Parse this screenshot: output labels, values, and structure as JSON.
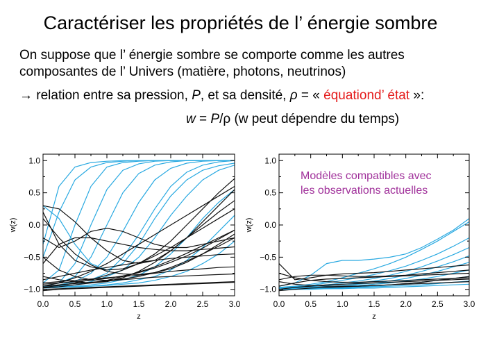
{
  "slide": {
    "title": "Caractériser les propriétés de l’ énergie sombre",
    "para1_line1": "On suppose que l’ énergie sombre se comporte comme les autres",
    "para1_line2": "composantes de l’ Univers (matière, photons, neutrinos)",
    "arrow": "→",
    "para2_pre": " relation entre sa pression, ",
    "para2_P": "P",
    "para2_mid": ", et sa densité, ",
    "para2_rho": "ρ",
    "para2_eqsign": " = « ",
    "para2_eq": "équationd’ état",
    "para2_post": " »:",
    "formula_w": "w",
    "formula_eq": " = ",
    "formula_P": "P",
    "formula_slash": "/ρ",
    "formula_note": "  (w peut dépendre du temps)",
    "right_note_line1": "Modèles compatibles avec",
    "right_note_line2": "les observations actuelles"
  },
  "colors": {
    "cyan": "#29a9e1",
    "black": "#111111",
    "red": "#e41a1a",
    "purple": "#a0309a"
  },
  "chart_data": [
    {
      "type": "line",
      "title": "",
      "xlabel": "z",
      "ylabel": "w(z)",
      "xlim": [
        0,
        3
      ],
      "ylim": [
        -1.1,
        1.1
      ],
      "xticks": [
        "0.0",
        "0.5",
        "1.0",
        "1.5",
        "2.0",
        "2.5",
        "3.0"
      ],
      "yticks": [
        "-1.0",
        "-0.5",
        "0.0",
        "0.5",
        "1.0"
      ],
      "x": [
        0,
        0.25,
        0.5,
        0.75,
        1,
        1.25,
        1.5,
        1.75,
        2,
        2.25,
        2.5,
        2.75,
        3
      ],
      "series_cyan": [
        [
          -0.3,
          0.6,
          0.9,
          0.97,
          0.99,
          1,
          1,
          1,
          1,
          1,
          1,
          1,
          1
        ],
        [
          -0.5,
          0.2,
          0.7,
          0.9,
          0.97,
          0.99,
          1,
          1,
          1,
          1,
          1,
          1,
          1
        ],
        [
          -0.9,
          -0.7,
          0.0,
          0.6,
          0.9,
          0.97,
          0.99,
          1,
          1,
          1,
          1,
          1,
          1
        ],
        [
          -0.95,
          -0.9,
          -0.6,
          0.0,
          0.55,
          0.85,
          0.95,
          0.99,
          1,
          1,
          1,
          1,
          1
        ],
        [
          -0.95,
          -0.9,
          -0.8,
          -0.5,
          0.0,
          0.5,
          0.8,
          0.93,
          0.98,
          1,
          1,
          1,
          1
        ],
        [
          -0.96,
          -0.93,
          -0.88,
          -0.75,
          -0.5,
          -0.1,
          0.35,
          0.7,
          0.88,
          0.96,
          0.99,
          1,
          1
        ],
        [
          -0.97,
          -0.95,
          -0.9,
          -0.85,
          -0.75,
          -0.5,
          -0.15,
          0.25,
          0.6,
          0.82,
          0.93,
          0.98,
          1
        ],
        [
          -0.97,
          -0.95,
          -0.93,
          -0.88,
          -0.8,
          -0.7,
          -0.5,
          -0.2,
          0.15,
          0.45,
          0.7,
          0.85,
          0.93
        ],
        [
          0.3,
          0.1,
          -0.3,
          -0.6,
          -0.7,
          -0.6,
          -0.3,
          0.1,
          0.45,
          0.7,
          0.85,
          0.92,
          0.96
        ],
        [
          -0.97,
          -0.96,
          -0.95,
          -0.93,
          -0.9,
          -0.85,
          -0.78,
          -0.65,
          -0.45,
          -0.2,
          0.1,
          0.35,
          0.55
        ],
        [
          -0.98,
          -0.97,
          -0.96,
          -0.95,
          -0.93,
          -0.9,
          -0.85,
          -0.8,
          -0.7,
          -0.55,
          -0.35,
          -0.1,
          0.15
        ],
        [
          -0.98,
          -0.97,
          -0.96,
          -0.95,
          -0.94,
          -0.92,
          -0.9,
          -0.86,
          -0.8,
          -0.72,
          -0.6,
          -0.45,
          -0.25
        ]
      ],
      "series_black": [
        [
          0.3,
          0.25,
          0.05,
          -0.2,
          -0.4,
          -0.55,
          -0.6,
          -0.55,
          -0.4,
          -0.2,
          0.05,
          0.3,
          0.55
        ],
        [
          0.2,
          -0.3,
          -0.55,
          -0.65,
          -0.7,
          -0.68,
          -0.6,
          -0.45,
          -0.25,
          0.0,
          0.25,
          0.5,
          0.72
        ],
        [
          -0.2,
          -0.35,
          -0.25,
          -0.1,
          -0.05,
          -0.1,
          -0.2,
          -0.3,
          -0.35,
          -0.35,
          -0.3,
          -0.25,
          -0.2
        ],
        [
          -0.6,
          -0.3,
          -0.2,
          -0.2,
          -0.25,
          -0.3,
          -0.35,
          -0.38,
          -0.4,
          -0.4,
          -0.38,
          -0.36,
          -0.34
        ],
        [
          -0.95,
          -0.9,
          -0.82,
          -0.72,
          -0.6,
          -0.45,
          -0.3,
          -0.15,
          0.0,
          0.15,
          0.3,
          0.45,
          0.6
        ],
        [
          -0.97,
          -0.94,
          -0.9,
          -0.85,
          -0.78,
          -0.7,
          -0.6,
          -0.48,
          -0.35,
          -0.2,
          -0.05,
          0.1,
          0.25
        ],
        [
          -0.98,
          -0.96,
          -0.93,
          -0.9,
          -0.86,
          -0.8,
          -0.73,
          -0.65,
          -0.55,
          -0.44,
          -0.32,
          -0.2,
          -0.08
        ],
        [
          -0.85,
          -0.8,
          -0.75,
          -0.7,
          -0.66,
          -0.62,
          -0.58,
          -0.55,
          -0.52,
          -0.5,
          -0.48,
          -0.46,
          -0.45
        ],
        [
          -0.9,
          -0.88,
          -0.86,
          -0.84,
          -0.82,
          -0.8,
          -0.78,
          -0.75,
          -0.72,
          -0.7,
          -0.68,
          -0.66,
          -0.65
        ],
        [
          -0.95,
          -0.93,
          -0.91,
          -0.89,
          -0.87,
          -0.85,
          -0.83,
          -0.81,
          -0.8,
          -0.79,
          -0.78,
          -0.77,
          -0.76
        ],
        [
          -1.0,
          -0.99,
          -0.98,
          -0.97,
          -0.96,
          -0.95,
          -0.94,
          -0.93,
          -0.92,
          -0.91,
          -0.9,
          -0.89,
          -0.88
        ],
        [
          -0.8,
          -0.85,
          -0.88,
          -0.9,
          -0.88,
          -0.82,
          -0.72,
          -0.58,
          -0.4,
          -0.2,
          0.0,
          0.2,
          0.38
        ],
        [
          -0.5,
          -0.7,
          -0.8,
          -0.85,
          -0.86,
          -0.84,
          -0.8,
          -0.74,
          -0.66,
          -0.56,
          -0.45,
          -0.33,
          -0.2
        ],
        [
          0.1,
          -0.2,
          -0.45,
          -0.62,
          -0.72,
          -0.76,
          -0.77,
          -0.74,
          -0.68,
          -0.58,
          -0.45,
          -0.3,
          -0.14
        ],
        [
          -1.02,
          -1.0,
          -0.99,
          -0.98,
          -0.97,
          -0.96,
          -0.95,
          -0.94,
          -0.93,
          -0.92,
          -0.91,
          -0.9,
          -0.89
        ],
        [
          -0.92,
          -0.9,
          -0.88,
          -0.86,
          -0.83,
          -0.79,
          -0.74,
          -0.67,
          -0.58,
          -0.48,
          -0.36,
          -0.22,
          -0.08
        ]
      ]
    },
    {
      "type": "line",
      "title": "",
      "xlabel": "z",
      "ylabel": "w(z)",
      "xlim": [
        0,
        3
      ],
      "ylim": [
        -1.1,
        1.1
      ],
      "xticks": [
        "0.0",
        "0.5",
        "1.0",
        "1.5",
        "2.0",
        "2.5",
        "3.0"
      ],
      "yticks": [
        "-1.0",
        "-0.5",
        "0.0",
        "0.5",
        "1.0"
      ],
      "x": [
        0,
        0.25,
        0.5,
        0.75,
        1,
        1.25,
        1.5,
        1.75,
        2,
        2.25,
        2.5,
        2.75,
        3
      ],
      "series_cyan": [
        [
          -0.95,
          -0.9,
          -0.78,
          -0.6,
          -0.55,
          -0.55,
          -0.53,
          -0.5,
          -0.45,
          -0.35,
          -0.22,
          -0.08,
          0.1
        ],
        [
          -0.97,
          -0.95,
          -0.92,
          -0.88,
          -0.82,
          -0.75,
          -0.68,
          -0.6,
          -0.5,
          -0.38,
          -0.25,
          -0.1,
          0.05
        ],
        [
          -0.98,
          -0.96,
          -0.94,
          -0.9,
          -0.86,
          -0.82,
          -0.77,
          -0.71,
          -0.64,
          -0.55,
          -0.45,
          -0.33,
          -0.2
        ],
        [
          -0.98,
          -0.97,
          -0.95,
          -0.93,
          -0.9,
          -0.87,
          -0.83,
          -0.78,
          -0.72,
          -0.65,
          -0.56,
          -0.46,
          -0.35
        ],
        [
          -0.99,
          -0.98,
          -0.96,
          -0.94,
          -0.92,
          -0.9,
          -0.87,
          -0.83,
          -0.78,
          -0.72,
          -0.65,
          -0.57,
          -0.48
        ],
        [
          -0.99,
          -0.98,
          -0.97,
          -0.96,
          -0.94,
          -0.92,
          -0.9,
          -0.87,
          -0.83,
          -0.78,
          -0.72,
          -0.65,
          -0.58
        ],
        [
          -0.99,
          -0.99,
          -0.98,
          -0.97,
          -0.95,
          -0.94,
          -0.92,
          -0.9,
          -0.87,
          -0.84,
          -0.8,
          -0.75,
          -0.7
        ],
        [
          -1.0,
          -0.99,
          -0.99,
          -0.98,
          -0.97,
          -0.96,
          -0.95,
          -0.93,
          -0.91,
          -0.89,
          -0.86,
          -0.83,
          -0.8
        ],
        [
          -1.0,
          -1.0,
          -0.99,
          -0.99,
          -0.98,
          -0.97,
          -0.96,
          -0.95,
          -0.94,
          -0.93,
          -0.91,
          -0.89,
          -0.87
        ],
        [
          -1.0,
          -1.0,
          -1.0,
          -0.99,
          -0.99,
          -0.98,
          -0.98,
          -0.97,
          -0.96,
          -0.95,
          -0.94,
          -0.93,
          -0.92
        ]
      ],
      "series_black": [
        [
          -0.6,
          -0.85,
          -0.82,
          -0.78,
          -0.76,
          -0.75,
          -0.74,
          -0.72,
          -0.7,
          -0.68,
          -0.66,
          -0.64,
          -0.62
        ],
        [
          -0.85,
          -0.8,
          -0.78,
          -0.78,
          -0.79,
          -0.8,
          -0.8,
          -0.79,
          -0.78,
          -0.76,
          -0.74,
          -0.72,
          -0.7
        ],
        [
          -0.95,
          -0.9,
          -0.86,
          -0.84,
          -0.83,
          -0.82,
          -0.81,
          -0.8,
          -0.79,
          -0.78,
          -0.77,
          -0.76,
          -0.75
        ],
        [
          -0.75,
          -0.82,
          -0.86,
          -0.88,
          -0.89,
          -0.89,
          -0.88,
          -0.87,
          -0.86,
          -0.85,
          -0.84,
          -0.83,
          -0.82
        ],
        [
          -1.0,
          -0.97,
          -0.95,
          -0.93,
          -0.92,
          -0.91,
          -0.9,
          -0.89,
          -0.88,
          -0.87,
          -0.86,
          -0.85,
          -0.84
        ],
        [
          -1.02,
          -1.0,
          -0.98,
          -0.97,
          -0.96,
          -0.95,
          -0.94,
          -0.93,
          -0.92,
          -0.91,
          -0.9,
          -0.89,
          -0.88
        ],
        [
          -0.88,
          -0.92,
          -0.94,
          -0.95,
          -0.95,
          -0.95,
          -0.94,
          -0.93,
          -0.91,
          -0.89,
          -0.86,
          -0.83,
          -0.8
        ]
      ]
    }
  ]
}
